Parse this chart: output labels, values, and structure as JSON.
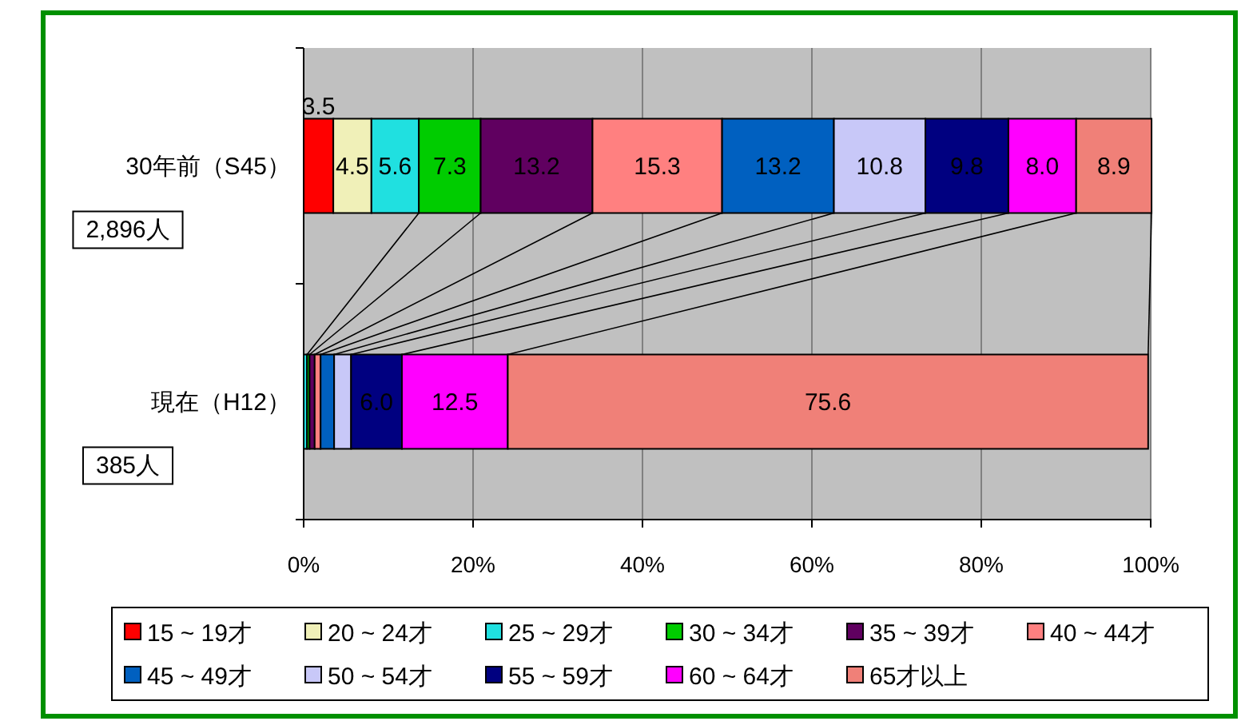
{
  "chart_data": {
    "type": "bar",
    "orientation": "horizontal",
    "stacked": true,
    "categories": [
      "30年前（S45）",
      "現在（H12）"
    ],
    "annotations": [
      "2,896人",
      "385人"
    ],
    "xlim": [
      0,
      100
    ],
    "xticks": [
      {
        "value": 0,
        "label": "0%"
      },
      {
        "value": 20,
        "label": "20%"
      },
      {
        "value": 40,
        "label": "40%"
      },
      {
        "value": 60,
        "label": "60%"
      },
      {
        "value": 80,
        "label": "80%"
      },
      {
        "value": 100,
        "label": "100%"
      }
    ],
    "grid": "x",
    "legend": "bottom",
    "series": [
      {
        "name": "15 ~ 19才",
        "color": "#ff0000",
        "values": [
          3.5,
          null
        ],
        "value_labels": [
          "3.5",
          null
        ]
      },
      {
        "name": "20 ~ 24才",
        "color": "#f0f0b8",
        "values": [
          4.5,
          null
        ],
        "value_labels": [
          "4.5",
          null
        ]
      },
      {
        "name": "25 ~ 29才",
        "color": "#20e0e0",
        "values": [
          5.6,
          0.4
        ],
        "value_labels": [
          "5.6",
          null
        ]
      },
      {
        "name": "30 ~ 34才",
        "color": "#00cc00",
        "values": [
          7.3,
          0.3
        ],
        "value_labels": [
          "7.3",
          null
        ]
      },
      {
        "name": "35 ~ 39才",
        "color": "#600060",
        "values": [
          13.2,
          0.6
        ],
        "value_labels": [
          "13.2",
          null
        ]
      },
      {
        "name": "40 ~ 44才",
        "color": "#ff8080",
        "values": [
          15.3,
          0.7
        ],
        "value_labels": [
          "15.3",
          null
        ]
      },
      {
        "name": "45 ~ 49才",
        "color": "#0060c0",
        "values": [
          13.2,
          1.6
        ],
        "value_labels": [
          "13.2",
          null
        ]
      },
      {
        "name": "50 ~ 54才",
        "color": "#c8c8f8",
        "values": [
          10.8,
          2.0
        ],
        "value_labels": [
          "10.8",
          null
        ]
      },
      {
        "name": "55 ~ 59才",
        "color": "#000080",
        "values": [
          9.8,
          6.0
        ],
        "value_labels": [
          "9.8",
          "6.0"
        ]
      },
      {
        "name": "60 ~ 64才",
        "color": "#ff00ff",
        "values": [
          8.0,
          12.5
        ],
        "value_labels": [
          "8.0",
          "12.5"
        ]
      },
      {
        "name": "65才以上",
        "color": "#f08078",
        "values": [
          8.9,
          75.6
        ],
        "value_labels": [
          "8.9",
          "75.6"
        ]
      }
    ]
  }
}
